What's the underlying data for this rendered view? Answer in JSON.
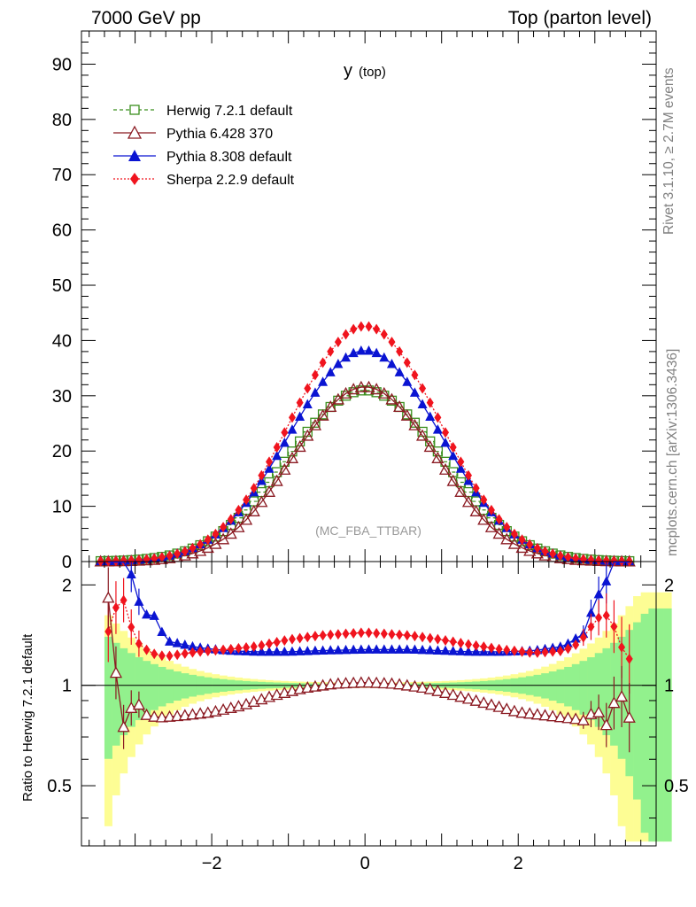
{
  "header": {
    "left": "7000 GeV pp",
    "right": "Top (parton level)",
    "side_top": "Rivet 3.1.10, ≥ 2.7M events",
    "side_bottom": "mcplots.cern.ch [arXiv:1306.3436]"
  },
  "plot": {
    "title_main": "y",
    "title_sub": "(top)",
    "watermark": "(MC_FBA_TTBAR)",
    "ratio_ylabel": "Ratio to Herwig 7.2.1 default"
  },
  "legend": [
    {
      "label": "Herwig 7.2.1 default",
      "color": "#3a8f1d",
      "marker": "open-square",
      "line": "dashed"
    },
    {
      "label": "Pythia 6.428 370",
      "color": "#8b1a22",
      "marker": "open-triangle",
      "line": "solid"
    },
    {
      "label": "Pythia 8.308 default",
      "color": "#0a14d2",
      "marker": "filled-triangle",
      "line": "solid"
    },
    {
      "label": "Sherpa 2.2.9 default",
      "color": "#f0141e",
      "marker": "filled-diamond",
      "line": "dotted"
    }
  ],
  "chart_data": {
    "type": "line",
    "x_range": [
      -3.7,
      3.8
    ],
    "main_ylim": [
      0,
      96
    ],
    "ratio_ylim": [
      0.33,
      2.35
    ],
    "ratio_scale": "log",
    "x_ticks": [
      -2,
      0,
      2
    ],
    "x_tick_labels": [
      "−2",
      "0",
      "2"
    ],
    "main_y_ticks": [
      0,
      10,
      20,
      30,
      40,
      50,
      60,
      70,
      80,
      90
    ],
    "main_y_tick_labels": [
      "0",
      "10",
      "20",
      "30",
      "40",
      "50",
      "60",
      "70",
      "80",
      "90"
    ],
    "ratio_y_ticks": [
      0.5,
      1,
      2
    ],
    "ratio_y_tick_labels": [
      "0.5",
      "1",
      "2"
    ],
    "series_shape": {
      "herwig_peak": 31.0,
      "herwig_sigma": 0.98,
      "pythia6_peak": 31.6,
      "pythia6_sigma": 0.9,
      "pythia8_peak": 38.2,
      "pythia8_sigma": 0.95,
      "sherpa_peak": 42.6,
      "sherpa_sigma": 0.93
    },
    "ratio_points": {
      "pythia8": [
        [
          -3.2,
          2.6
        ],
        [
          -3.0,
          2.0
        ],
        [
          -2.9,
          1.56
        ],
        [
          -2.8,
          1.7
        ],
        [
          -2.6,
          1.36
        ],
        [
          -2.4,
          1.33
        ],
        [
          -2.2,
          1.3
        ],
        [
          -1.8,
          1.27
        ],
        [
          -1.4,
          1.26
        ],
        [
          -1.0,
          1.26
        ],
        [
          -0.6,
          1.27
        ],
        [
          0,
          1.28
        ],
        [
          0.6,
          1.28
        ],
        [
          1.0,
          1.27
        ],
        [
          1.4,
          1.26
        ],
        [
          1.8,
          1.26
        ],
        [
          2.2,
          1.27
        ],
        [
          2.6,
          1.31
        ],
        [
          2.9,
          1.45
        ],
        [
          3.0,
          1.85
        ],
        [
          3.1,
          1.9
        ],
        [
          3.3,
          2.5
        ]
      ],
      "sherpa": [
        [
          -3.3,
          1.45
        ],
        [
          -3.2,
          1.97
        ],
        [
          -3.1,
          1.63
        ],
        [
          -3.0,
          1.36
        ],
        [
          -2.8,
          1.25
        ],
        [
          -2.6,
          1.22
        ],
        [
          -2.2,
          1.26
        ],
        [
          -1.8,
          1.28
        ],
        [
          -1.4,
          1.31
        ],
        [
          -1.0,
          1.37
        ],
        [
          -0.6,
          1.41
        ],
        [
          0,
          1.44
        ],
        [
          0.6,
          1.41
        ],
        [
          1.0,
          1.37
        ],
        [
          1.4,
          1.32
        ],
        [
          1.8,
          1.28
        ],
        [
          2.2,
          1.25
        ],
        [
          2.6,
          1.27
        ],
        [
          2.8,
          1.34
        ],
        [
          3.0,
          1.55
        ],
        [
          3.1,
          1.64
        ],
        [
          3.2,
          1.6
        ],
        [
          3.4,
          1.2
        ]
      ],
      "pythia6": [
        [
          -3.35,
          1.83
        ],
        [
          -3.2,
          0.72
        ],
        [
          -3.1,
          0.78
        ],
        [
          -3.0,
          0.93
        ],
        [
          -2.9,
          0.82
        ],
        [
          -2.7,
          0.8
        ],
        [
          -2.4,
          0.81
        ],
        [
          -2.0,
          0.83
        ],
        [
          -1.6,
          0.87
        ],
        [
          -1.2,
          0.93
        ],
        [
          -0.8,
          0.98
        ],
        [
          -0.4,
          1.01
        ],
        [
          0,
          1.02
        ],
        [
          0.4,
          1.01
        ],
        [
          0.8,
          0.98
        ],
        [
          1.2,
          0.93
        ],
        [
          1.6,
          0.88
        ],
        [
          2.0,
          0.83
        ],
        [
          2.4,
          0.81
        ],
        [
          2.8,
          0.79
        ],
        [
          2.9,
          0.78
        ],
        [
          3.0,
          0.86
        ],
        [
          3.1,
          0.8
        ],
        [
          3.2,
          0.72
        ],
        [
          3.3,
          1.05
        ],
        [
          3.4,
          0.8
        ]
      ]
    }
  }
}
